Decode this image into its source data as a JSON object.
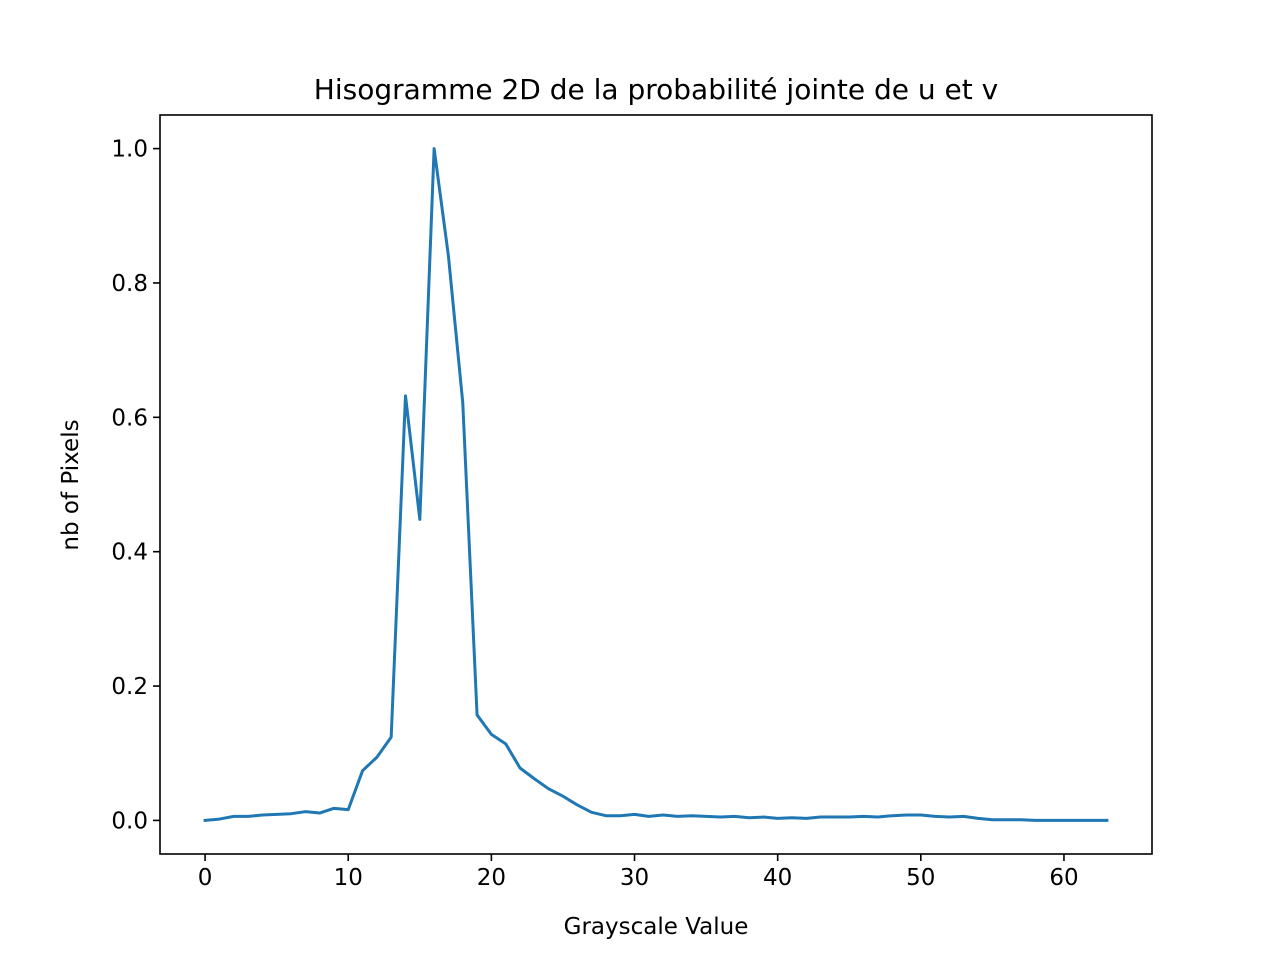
{
  "chart_data": {
    "type": "line",
    "title": "Hisogramme 2D de la probabilité jointe de u et v",
    "xlabel": "Grayscale Value",
    "ylabel": "nb of Pixels",
    "xlim": [
      -3.15,
      66.15
    ],
    "ylim": [
      -0.05,
      1.05
    ],
    "xticks": [
      0,
      10,
      20,
      30,
      40,
      50,
      60
    ],
    "xtick_labels": [
      "0",
      "10",
      "20",
      "30",
      "40",
      "50",
      "60"
    ],
    "yticks": [
      0.0,
      0.2,
      0.4,
      0.6,
      0.8,
      1.0
    ],
    "ytick_labels": [
      "0.0",
      "0.2",
      "0.4",
      "0.6",
      "0.8",
      "1.0"
    ],
    "grid": false,
    "series": [
      {
        "color": "#1f77b4",
        "x": [
          0,
          1,
          2,
          3,
          4,
          5,
          6,
          7,
          8,
          9,
          10,
          11,
          12,
          13,
          14,
          15,
          16,
          17,
          18,
          19,
          20,
          21,
          22,
          23,
          24,
          25,
          26,
          27,
          28,
          29,
          30,
          31,
          32,
          33,
          34,
          35,
          36,
          37,
          38,
          39,
          40,
          41,
          42,
          43,
          44,
          45,
          46,
          47,
          48,
          49,
          50,
          51,
          52,
          53,
          54,
          55,
          56,
          57,
          58,
          59,
          60,
          61,
          62,
          63
        ],
        "y": [
          0.0,
          0.002,
          0.006,
          0.006,
          0.008,
          0.009,
          0.01,
          0.013,
          0.011,
          0.018,
          0.016,
          0.074,
          0.094,
          0.124,
          0.632,
          0.448,
          1.0,
          0.84,
          0.622,
          0.157,
          0.128,
          0.114,
          0.078,
          0.062,
          0.047,
          0.036,
          0.023,
          0.012,
          0.007,
          0.007,
          0.009,
          0.006,
          0.008,
          0.006,
          0.007,
          0.006,
          0.005,
          0.006,
          0.004,
          0.005,
          0.003,
          0.004,
          0.003,
          0.005,
          0.005,
          0.005,
          0.006,
          0.005,
          0.007,
          0.008,
          0.008,
          0.006,
          0.005,
          0.006,
          0.003,
          0.001,
          0.001,
          0.001,
          0.0,
          0.0,
          0.0,
          0.0,
          0.0,
          0.0
        ]
      }
    ]
  }
}
